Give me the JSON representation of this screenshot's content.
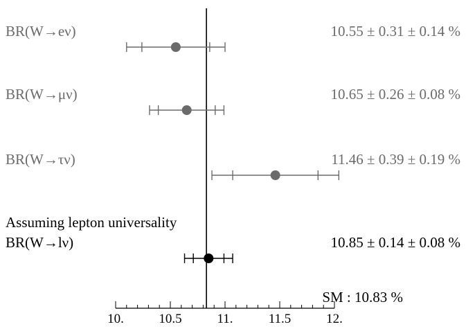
{
  "chart_data": {
    "type": "scatter",
    "subtype": "error-bar forest plot",
    "xlim": [
      10.0,
      12.0
    ],
    "x_ticks": [
      10.0,
      10.5,
      11.0,
      11.5,
      12.0
    ],
    "x_tick_labels": [
      "10.",
      "10.5",
      "11.",
      "11.5",
      "12."
    ],
    "reference_line": 10.83,
    "reference_label": "SM : 10.83 %",
    "grid": false,
    "section_heading": "Assuming lepton universality",
    "measurements": [
      {
        "label": "BR(W→eν)",
        "value": 10.55,
        "stat": 0.31,
        "syst": 0.14,
        "value_text": "10.55 ± 0.31 ± 0.14 %",
        "color": "#6b6b6b"
      },
      {
        "label": "BR(W→μν)",
        "value": 10.65,
        "stat": 0.26,
        "syst": 0.08,
        "value_text": "10.65 ± 0.26 ± 0.08 %",
        "color": "#6b6b6b"
      },
      {
        "label": "BR(W→τν)",
        "value": 11.46,
        "stat": 0.39,
        "syst": 0.19,
        "value_text": "11.46 ± 0.39 ± 0.19 %",
        "color": "#6b6b6b"
      },
      {
        "label": "BR(W→lν)",
        "value": 10.85,
        "stat": 0.14,
        "syst": 0.08,
        "value_text": "10.85 ± 0.14 ± 0.08 %",
        "color": "#000000"
      }
    ]
  }
}
